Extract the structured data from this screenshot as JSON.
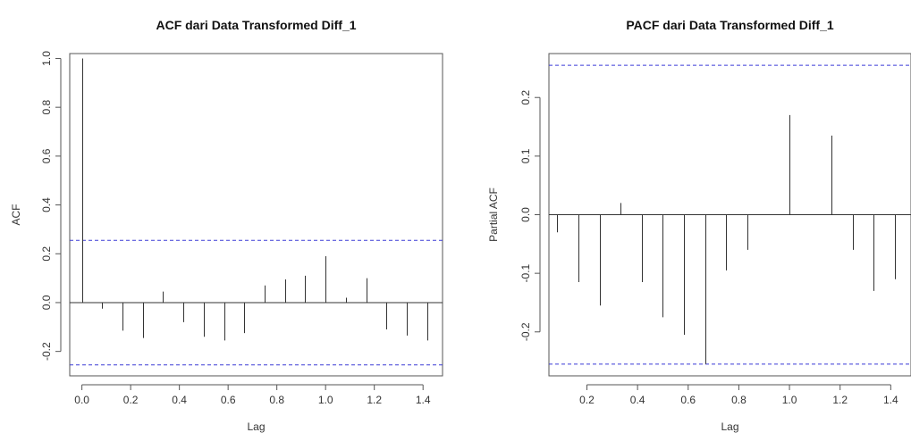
{
  "chart_data": [
    {
      "type": "bar",
      "title": "ACF dari Data Transformed Diff_1",
      "xlabel": "Lag",
      "ylabel": "ACF",
      "xlim": [
        -0.05,
        1.48
      ],
      "ylim": [
        -0.3,
        1.02
      ],
      "x_ticks": [
        0.0,
        0.2,
        0.4,
        0.6,
        0.8,
        1.0,
        1.2,
        1.4
      ],
      "x_tick_labels": [
        "0.0",
        "0.2",
        "0.4",
        "0.6",
        "0.8",
        "1.0",
        "1.2",
        "1.4"
      ],
      "y_ticks": [
        -0.2,
        0.0,
        0.2,
        0.4,
        0.6,
        0.8,
        1.0
      ],
      "y_tick_labels": [
        "-0.2",
        "0.0",
        "0.2",
        "0.4",
        "0.6",
        "0.8",
        "1.0"
      ],
      "confidence_bounds": [
        0.255,
        -0.255
      ],
      "x": [
        0.0,
        0.0833,
        0.1667,
        0.25,
        0.3333,
        0.4167,
        0.5,
        0.5833,
        0.6667,
        0.75,
        0.8333,
        0.9167,
        1.0,
        1.0833,
        1.1667,
        1.25,
        1.3333,
        1.4167
      ],
      "values": [
        1.0,
        -0.025,
        -0.115,
        -0.145,
        0.045,
        -0.08,
        -0.14,
        -0.155,
        -0.125,
        0.07,
        0.095,
        0.11,
        0.19,
        0.02,
        0.1,
        -0.11,
        -0.135,
        -0.155
      ],
      "grid": false
    },
    {
      "type": "bar",
      "title": "PACF dari Data Transformed Diff_1",
      "xlabel": "Lag",
      "ylabel": "Partial ACF",
      "xlim": [
        0.05,
        1.48
      ],
      "ylim": [
        -0.275,
        0.275
      ],
      "x_ticks": [
        0.2,
        0.4,
        0.6,
        0.8,
        1.0,
        1.2,
        1.4
      ],
      "x_tick_labels": [
        "0.2",
        "0.4",
        "0.6",
        "0.8",
        "1.0",
        "1.2",
        "1.4"
      ],
      "y_ticks": [
        -0.2,
        -0.1,
        0.0,
        0.1,
        0.2
      ],
      "y_tick_labels": [
        "-0.2",
        "-0.1",
        "0.0",
        "0.1",
        "0.2"
      ],
      "confidence_bounds": [
        0.255,
        -0.255
      ],
      "x": [
        0.0833,
        0.1667,
        0.25,
        0.3333,
        0.4167,
        0.5,
        0.5833,
        0.6667,
        0.75,
        0.8333,
        0.9167,
        1.0,
        1.0833,
        1.1667,
        1.25,
        1.3333,
        1.4167
      ],
      "values": [
        -0.03,
        -0.115,
        -0.155,
        0.02,
        -0.115,
        -0.175,
        -0.205,
        -0.255,
        -0.095,
        -0.06,
        0.0,
        0.17,
        0.0,
        0.135,
        -0.06,
        -0.13,
        -0.11
      ],
      "grid": false
    }
  ]
}
